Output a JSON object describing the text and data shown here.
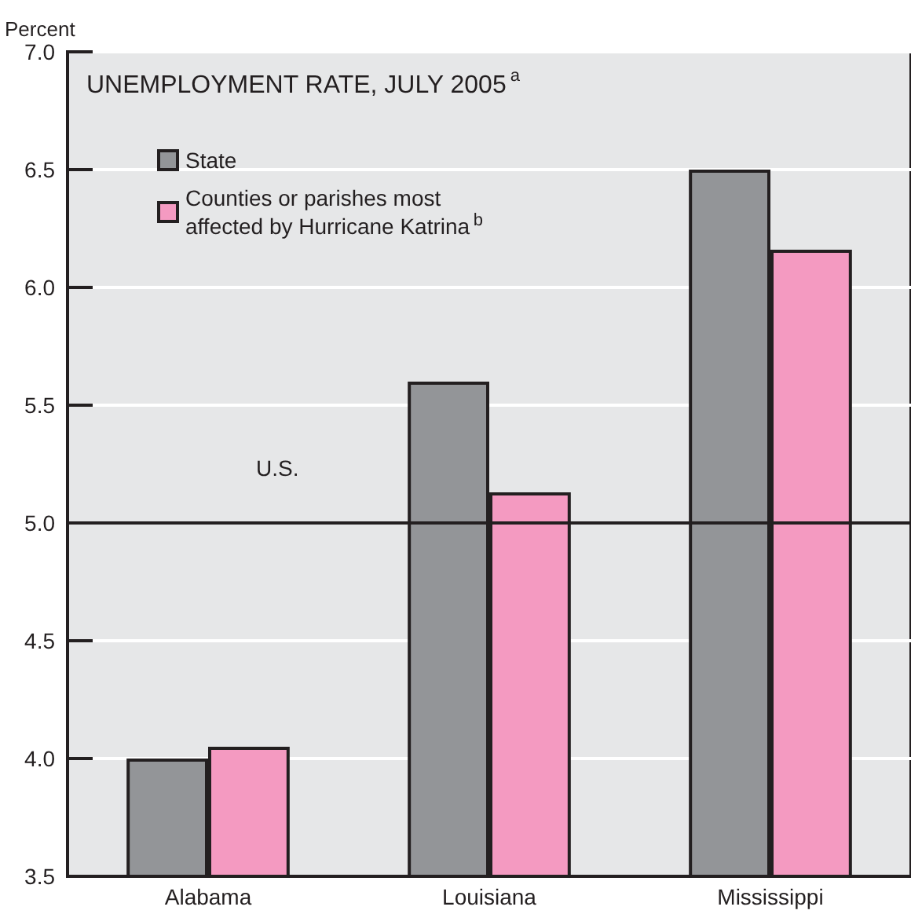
{
  "chart_data": {
    "type": "bar",
    "title": "UNEMPLOYMENT RATE, JULY 2005$^{a}$",
    "ylabel": "Percent",
    "categories": [
      "Alabama",
      "Louisiana",
      "Mississippi"
    ],
    "series": [
      {
        "name": "State",
        "color": "#939598",
        "values": [
          4.0,
          5.6,
          6.5
        ]
      },
      {
        "name": "Counties or parishes most affected by Hurricane Katrina$^{b}$",
        "color": "#f49ac1",
        "values": [
          4.05,
          5.13,
          6.16
        ]
      }
    ],
    "ylim": [
      3.5,
      7.0
    ],
    "yticks": [
      {
        "value": 3.5,
        "label": "3.5"
      },
      {
        "value": 4,
        "label": "4.0"
      },
      {
        "value": 4.5,
        "label": "4.5"
      },
      {
        "value": 5,
        "label": "5.0"
      },
      {
        "value": 5.5,
        "label": "5.5"
      },
      {
        "value": 6,
        "label": "6.0"
      },
      {
        "value": 6.5,
        "label": "6.5"
      },
      {
        "value": 7,
        "label": "7.0"
      }
    ],
    "ref_lines": [
      {
        "axis": "y",
        "value": 5.0,
        "label": "U.S.",
        "color": "#231f20"
      }
    ],
    "grid": "y",
    "legend": "top left"
  }
}
